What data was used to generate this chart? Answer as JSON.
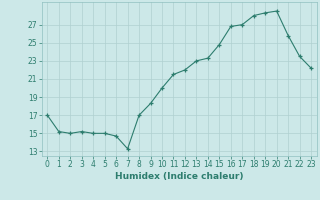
{
  "x": [
    0,
    1,
    2,
    3,
    4,
    5,
    6,
    7,
    8,
    9,
    10,
    11,
    12,
    13,
    14,
    15,
    16,
    17,
    18,
    19,
    20,
    21,
    22,
    23
  ],
  "y": [
    17,
    15.2,
    15,
    15.2,
    15,
    15,
    14.7,
    13.3,
    17,
    18.3,
    20,
    21.5,
    22,
    23,
    23.3,
    24.8,
    26.8,
    27,
    28,
    28.3,
    28.5,
    25.8,
    23.5,
    22.2
  ],
  "line_color": "#2d7d6e",
  "marker": "+",
  "marker_size": 3.5,
  "marker_color": "#2d7d6e",
  "background_color": "#cce8e8",
  "grid_color": "#b0d0d0",
  "xlabel": "Humidex (Indice chaleur)",
  "xlim": [
    -0.5,
    23.5
  ],
  "ylim": [
    12.5,
    29.5
  ],
  "yticks": [
    13,
    15,
    17,
    19,
    21,
    23,
    25,
    27
  ],
  "xticks": [
    0,
    1,
    2,
    3,
    4,
    5,
    6,
    7,
    8,
    9,
    10,
    11,
    12,
    13,
    14,
    15,
    16,
    17,
    18,
    19,
    20,
    21,
    22,
    23
  ],
  "tick_fontsize": 5.5,
  "xlabel_fontsize": 6.5
}
